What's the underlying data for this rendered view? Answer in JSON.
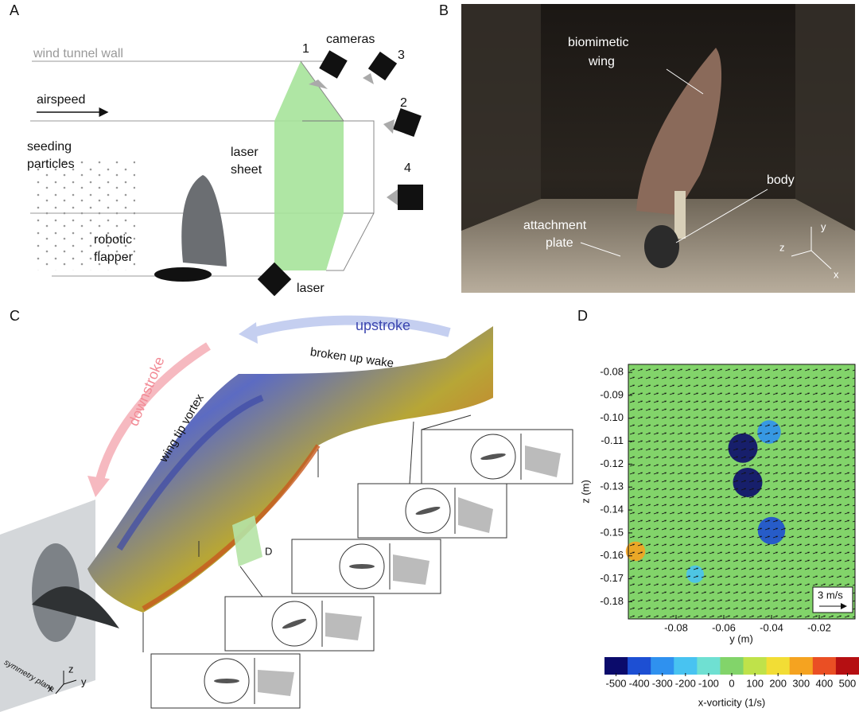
{
  "panel_a": {
    "label": "A",
    "wind_tunnel_wall": "wind tunnel wall",
    "cameras": "cameras",
    "camera_numbers": [
      "1",
      "2",
      "3",
      "4"
    ],
    "airspeed": "airspeed",
    "seeding_particles": [
      "seeding",
      "particles"
    ],
    "laser_sheet": [
      "laser",
      "sheet"
    ],
    "robotic_flapper": [
      "robotic",
      "flapper"
    ],
    "laser": "laser"
  },
  "panel_b": {
    "label": "B",
    "biomimetic_wing": [
      "biomimetic",
      "wing"
    ],
    "body": "body",
    "attachment_plate": [
      "attachment",
      "plate"
    ],
    "axes": [
      "z",
      "y",
      "x"
    ]
  },
  "panel_c": {
    "label": "C",
    "upstroke": "upstroke",
    "downstroke": "downstroke",
    "broken_up_wake": "broken up wake",
    "wing_tip_vortex": "wing tip vortex",
    "plane_marker": "D",
    "symmetry_plane": "symmetry plane",
    "axes": [
      "z",
      "y",
      "x"
    ]
  },
  "chart_data": {
    "type": "vorticity-field",
    "label": "D",
    "xlabel": "y (m)",
    "ylabel": "z (m)",
    "xlim": [
      -0.1,
      -0.005
    ],
    "ylim": [
      -0.1875,
      -0.0765
    ],
    "xticks": [
      -0.08,
      -0.06,
      -0.04,
      -0.02
    ],
    "yticks": [
      -0.08,
      -0.09,
      {
        "value": -0.1,
        "label": "-0.10"
      },
      -0.11,
      -0.12,
      -0.13,
      -0.14,
      -0.15,
      -0.16,
      -0.17,
      -0.18
    ],
    "scale_label": "3 m/s",
    "vortices": [
      {
        "y": -0.052,
        "z": -0.113,
        "vorticity": -500
      },
      {
        "y": -0.041,
        "z": -0.106,
        "vorticity": -350
      },
      {
        "y": -0.05,
        "z": -0.128,
        "vorticity": -500
      },
      {
        "y": -0.04,
        "z": -0.149,
        "vorticity": -450
      },
      {
        "y": -0.097,
        "z": -0.158,
        "vorticity": 250
      },
      {
        "y": -0.072,
        "z": -0.168,
        "vorticity": -200
      }
    ],
    "colorbar_label": "x-vorticity (1/s)",
    "colorbar_lim": [
      -550,
      550
    ],
    "colorbar_ticks": [
      -500,
      -400,
      -300,
      -200,
      -100,
      0,
      100,
      200,
      300,
      400,
      500
    ],
    "colormap": [
      "#0b0b6b",
      "#1d4fd3",
      "#2f91ef",
      "#48c3f1",
      "#6fe0d2",
      "#82d46a",
      "#bfe24a",
      "#f2dd35",
      "#f5a320",
      "#ea4f24",
      "#b50f12"
    ]
  }
}
